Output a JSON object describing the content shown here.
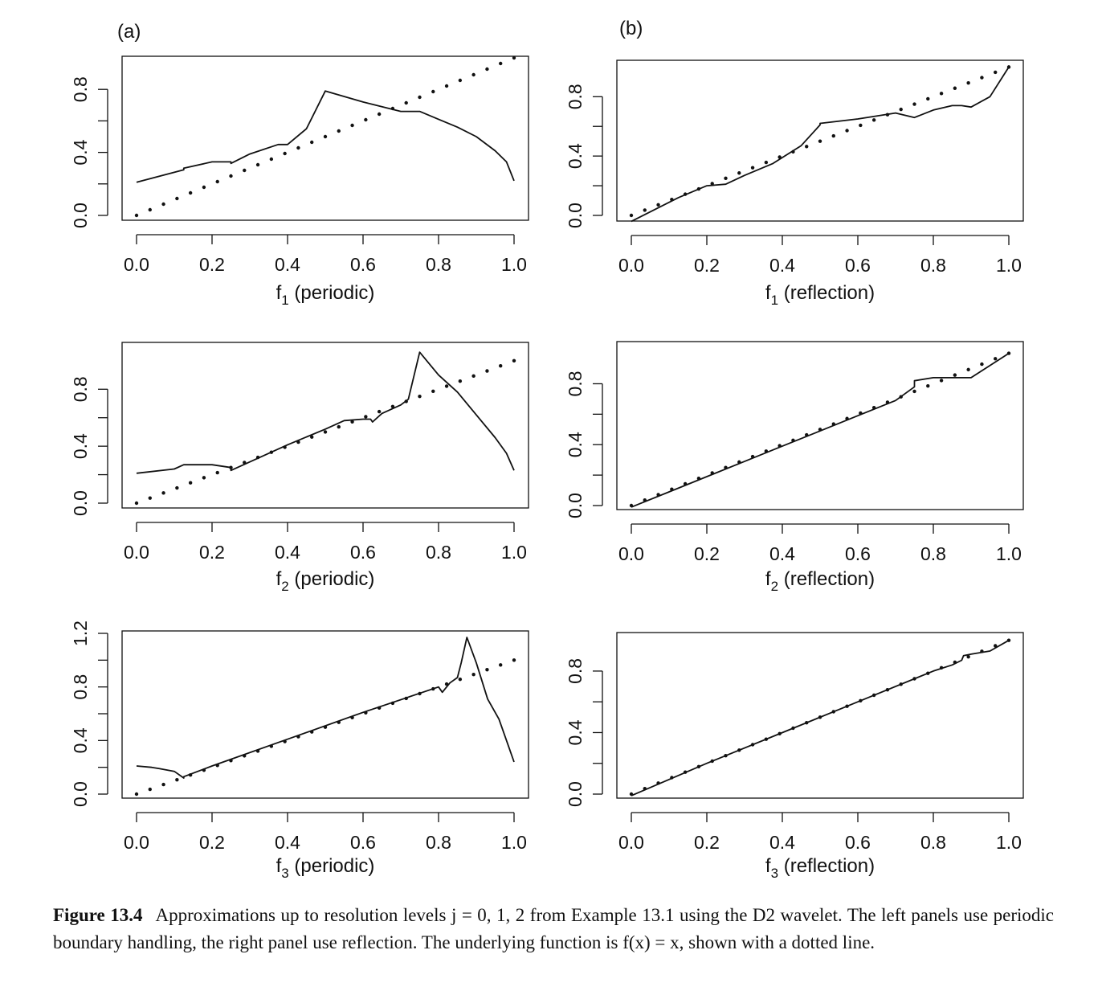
{
  "panel_tags": {
    "a": "(a)",
    "b": "(b)"
  },
  "caption": {
    "label": "Figure 13.4",
    "text": "Approximations up to resolution levels j = 0, 1, 2 from Example 13.1 using the D2 wavelet. The left panels use periodic boundary handling, the right panel use reflection. The underlying function is f(x) = x, shown with a dotted line."
  },
  "colors": {
    "line": "#111111",
    "background": "#ffffff"
  },
  "chart_data": [
    {
      "type": "line",
      "panel": "a1",
      "xlabel_main": "f",
      "xlabel_sub": "1",
      "xlabel_rest": " (periodic)",
      "xlim": [
        0,
        1
      ],
      "ylim": [
        0,
        1
      ],
      "xticks": [
        0,
        0.2,
        0.4,
        0.6,
        0.8,
        1.0
      ],
      "yticks": [
        0,
        0.4,
        0.8
      ],
      "series": [
        {
          "style": "solid",
          "x": [
            0,
            0.125,
            0.125,
            0.2,
            0.25,
            0.25,
            0.3,
            0.375,
            0.4,
            0.45,
            0.5,
            0.5,
            0.6,
            0.7,
            0.75,
            0.8,
            0.85,
            0.9,
            0.95,
            0.98,
            1.0
          ],
          "y": [
            0.21,
            0.29,
            0.3,
            0.34,
            0.34,
            0.33,
            0.39,
            0.45,
            0.45,
            0.55,
            0.79,
            0.79,
            0.72,
            0.66,
            0.66,
            0.61,
            0.56,
            0.5,
            0.41,
            0.34,
            0.22
          ]
        },
        {
          "style": "dotted",
          "x": [
            0,
            1
          ],
          "y": [
            0,
            1
          ]
        }
      ]
    },
    {
      "type": "line",
      "panel": "b1",
      "xlabel_main": "f",
      "xlabel_sub": "1",
      "xlabel_rest": " (reflection)",
      "xlim": [
        0,
        1
      ],
      "ylim": [
        -0.04,
        1.04
      ],
      "xticks": [
        0,
        0.2,
        0.4,
        0.6,
        0.8,
        1.0
      ],
      "yticks": [
        0,
        0.4,
        0.8
      ],
      "series": [
        {
          "style": "solid",
          "x": [
            0,
            0.125,
            0.2,
            0.25,
            0.3,
            0.375,
            0.45,
            0.5,
            0.5,
            0.6,
            0.7,
            0.75,
            0.8,
            0.85,
            0.875,
            0.9,
            0.95,
            1.0
          ],
          "y": [
            -0.04,
            0.12,
            0.2,
            0.21,
            0.27,
            0.35,
            0.47,
            0.61,
            0.62,
            0.65,
            0.69,
            0.66,
            0.71,
            0.74,
            0.74,
            0.73,
            0.8,
            1.0
          ]
        },
        {
          "style": "dotted",
          "x": [
            0,
            1
          ],
          "y": [
            0,
            1
          ]
        }
      ]
    },
    {
      "type": "line",
      "panel": "a2",
      "xlabel_main": "f",
      "xlabel_sub": "2",
      "xlabel_rest": " (periodic)",
      "xlim": [
        0,
        1
      ],
      "ylim": [
        0,
        1.05
      ],
      "xticks": [
        0,
        0.2,
        0.4,
        0.6,
        0.8,
        1.0
      ],
      "yticks": [
        0,
        0.4,
        0.8
      ],
      "series": [
        {
          "style": "solid",
          "x": [
            0,
            0.1,
            0.125,
            0.18,
            0.2,
            0.25,
            0.25,
            0.4,
            0.5,
            0.55,
            0.6,
            0.62,
            0.625,
            0.65,
            0.7,
            0.72,
            0.75,
            0.8,
            0.85,
            0.9,
            0.95,
            0.98,
            1.0
          ],
          "y": [
            0.21,
            0.24,
            0.27,
            0.27,
            0.27,
            0.25,
            0.23,
            0.41,
            0.52,
            0.58,
            0.59,
            0.59,
            0.57,
            0.63,
            0.69,
            0.73,
            1.06,
            0.9,
            0.78,
            0.62,
            0.46,
            0.35,
            0.23
          ]
        },
        {
          "style": "dotted",
          "x": [
            0,
            1
          ],
          "y": [
            0,
            1
          ]
        }
      ]
    },
    {
      "type": "line",
      "panel": "b2",
      "xlabel_main": "f",
      "xlabel_sub": "2",
      "xlabel_rest": " (reflection)",
      "xlim": [
        0,
        1
      ],
      "ylim": [
        -0.04,
        1.04
      ],
      "xticks": [
        0,
        0.2,
        0.4,
        0.6,
        0.8,
        1.0
      ],
      "yticks": [
        0,
        0.4,
        0.8
      ],
      "series": [
        {
          "style": "solid",
          "x": [
            0,
            0.1,
            0.2,
            0.3,
            0.4,
            0.5,
            0.6,
            0.7,
            0.75,
            0.75,
            0.8,
            0.85,
            0.875,
            0.9,
            0.95,
            1.0
          ],
          "y": [
            -0.01,
            0.09,
            0.19,
            0.29,
            0.39,
            0.49,
            0.59,
            0.69,
            0.78,
            0.82,
            0.84,
            0.84,
            0.84,
            0.84,
            0.92,
            1.0
          ]
        },
        {
          "style": "dotted",
          "x": [
            0,
            1
          ],
          "y": [
            0,
            1
          ]
        }
      ]
    },
    {
      "type": "line",
      "panel": "a3",
      "xlabel_main": "f",
      "xlabel_sub": "3",
      "xlabel_rest": " (periodic)",
      "xlim": [
        0,
        1
      ],
      "ylim": [
        0,
        1.2
      ],
      "xticks": [
        0,
        0.2,
        0.4,
        0.6,
        0.8,
        1.0
      ],
      "yticks": [
        0,
        0.4,
        0.8,
        1.2
      ],
      "series": [
        {
          "style": "solid",
          "x": [
            0,
            0.04,
            0.06,
            0.08,
            0.1,
            0.125,
            0.125,
            0.2,
            0.4,
            0.6,
            0.8,
            0.81,
            0.83,
            0.85,
            0.86,
            0.875,
            0.9,
            0.93,
            0.96,
            0.98,
            1.0
          ],
          "y": [
            0.21,
            0.2,
            0.19,
            0.18,
            0.17,
            0.12,
            0.13,
            0.21,
            0.41,
            0.61,
            0.8,
            0.76,
            0.83,
            0.87,
            0.98,
            1.17,
            0.98,
            0.71,
            0.56,
            0.4,
            0.24
          ]
        },
        {
          "style": "dotted",
          "x": [
            0,
            1
          ],
          "y": [
            0,
            1
          ]
        }
      ]
    },
    {
      "type": "line",
      "panel": "b3",
      "xlabel_main": "f",
      "xlabel_sub": "3",
      "xlabel_rest": " (reflection)",
      "xlim": [
        0,
        1
      ],
      "ylim": [
        -0.04,
        1.04
      ],
      "xticks": [
        0,
        0.2,
        0.4,
        0.6,
        0.8,
        1.0
      ],
      "yticks": [
        0,
        0.4,
        0.8
      ],
      "series": [
        {
          "style": "solid",
          "x": [
            0,
            0.2,
            0.4,
            0.6,
            0.8,
            0.85,
            0.875,
            0.88,
            0.9,
            0.95,
            1.0
          ],
          "y": [
            -0.01,
            0.2,
            0.4,
            0.6,
            0.8,
            0.84,
            0.87,
            0.9,
            0.91,
            0.93,
            1.0
          ]
        },
        {
          "style": "dotted",
          "x": [
            0,
            1
          ],
          "y": [
            0,
            1
          ]
        }
      ]
    }
  ]
}
